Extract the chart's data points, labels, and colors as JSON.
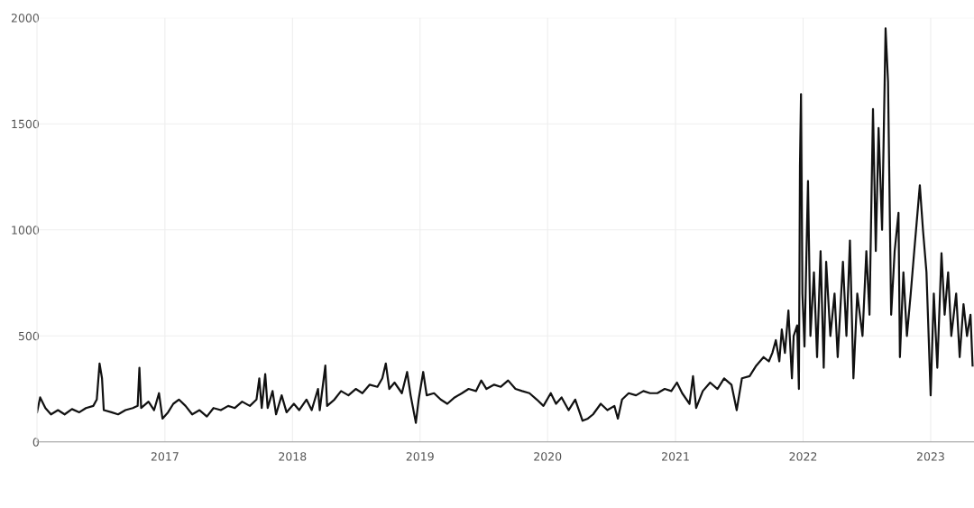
{
  "chart_data": {
    "type": "line",
    "x": [
      "2016-01-01",
      "2016-01-10",
      "2016-01-25",
      "2016-02-10",
      "2016-03-01",
      "2016-03-20",
      "2016-04-10",
      "2016-05-01",
      "2016-05-20",
      "2016-06-10",
      "2016-06-20",
      "2016-06-28",
      "2016-07-05",
      "2016-07-10",
      "2016-08-01",
      "2016-08-20",
      "2016-09-10",
      "2016-10-01",
      "2016-10-15",
      "2016-10-20",
      "2016-10-25",
      "2016-11-15",
      "2016-12-01",
      "2016-12-15",
      "2016-12-25",
      "2017-01-10",
      "2017-01-25",
      "2017-02-10",
      "2017-03-01",
      "2017-03-20",
      "2017-04-10",
      "2017-05-01",
      "2017-05-20",
      "2017-06-10",
      "2017-07-01",
      "2017-07-20",
      "2017-08-10",
      "2017-09-01",
      "2017-09-20",
      "2017-09-28",
      "2017-10-05",
      "2017-10-15",
      "2017-10-22",
      "2017-11-05",
      "2017-11-15",
      "2017-12-01",
      "2017-12-15",
      "2018-01-05",
      "2018-01-20",
      "2018-02-10",
      "2018-02-25",
      "2018-03-15",
      "2018-03-20",
      "2018-04-05",
      "2018-04-10",
      "2018-05-01",
      "2018-05-20",
      "2018-06-10",
      "2018-07-01",
      "2018-07-20",
      "2018-08-10",
      "2018-09-01",
      "2018-09-15",
      "2018-09-25",
      "2018-10-05",
      "2018-10-20",
      "2018-11-10",
      "2018-11-25",
      "2018-12-05",
      "2018-12-20",
      "2018-12-28",
      "2019-01-10",
      "2019-01-20",
      "2019-02-10",
      "2019-03-01",
      "2019-03-20",
      "2019-04-10",
      "2019-05-01",
      "2019-05-20",
      "2019-06-10",
      "2019-06-25",
      "2019-07-10",
      "2019-08-01",
      "2019-08-20",
      "2019-09-10",
      "2019-10-01",
      "2019-10-20",
      "2019-11-10",
      "2019-12-01",
      "2019-12-20",
      "2020-01-10",
      "2020-01-25",
      "2020-02-10",
      "2020-03-01",
      "2020-03-20",
      "2020-04-10",
      "2020-04-25",
      "2020-05-10",
      "2020-06-01",
      "2020-06-20",
      "2020-07-10",
      "2020-07-20",
      "2020-08-01",
      "2020-08-20",
      "2020-09-10",
      "2020-10-01",
      "2020-10-20",
      "2020-11-10",
      "2020-12-01",
      "2020-12-20",
      "2021-01-05",
      "2021-01-20",
      "2021-02-10",
      "2021-02-20",
      "2021-03-01",
      "2021-03-20",
      "2021-04-10",
      "2021-05-01",
      "2021-05-20",
      "2021-06-10",
      "2021-06-25",
      "2021-07-10",
      "2021-08-01",
      "2021-08-20",
      "2021-09-10",
      "2021-09-25",
      "2021-10-05",
      "2021-10-15",
      "2021-10-25",
      "2021-11-01",
      "2021-11-10",
      "2021-11-20",
      "2021-11-30",
      "2021-12-05",
      "2021-12-15",
      "2021-12-20",
      "2021-12-23",
      "2021-12-26",
      "2021-12-30",
      "2022-01-05",
      "2022-01-15",
      "2022-01-22",
      "2022-02-01",
      "2022-02-10",
      "2022-02-20",
      "2022-03-01",
      "2022-03-08",
      "2022-03-20",
      "2022-04-01",
      "2022-04-10",
      "2022-04-25",
      "2022-05-05",
      "2022-05-15",
      "2022-05-25",
      "2022-06-05",
      "2022-06-20",
      "2022-07-01",
      "2022-07-10",
      "2022-07-20",
      "2022-07-28",
      "2022-08-05",
      "2022-08-15",
      "2022-08-25",
      "2022-09-01",
      "2022-09-10",
      "2022-09-20",
      "2022-10-01",
      "2022-10-05",
      "2022-10-15",
      "2022-10-25",
      "2022-11-05",
      "2022-11-15",
      "2022-12-01",
      "2022-12-10",
      "2022-12-20",
      "2023-01-01",
      "2023-01-10",
      "2023-01-20",
      "2023-02-01",
      "2023-02-10",
      "2023-02-20",
      "2023-03-01",
      "2023-03-15",
      "2023-03-25",
      "2023-04-05",
      "2023-04-15",
      "2023-04-25",
      "2023-05-01"
    ],
    "series": [
      {
        "color": "#111111",
        "values": [
          140,
          210,
          160,
          130,
          150,
          130,
          155,
          140,
          160,
          170,
          200,
          370,
          300,
          150,
          140,
          130,
          150,
          160,
          170,
          350,
          160,
          190,
          150,
          230,
          110,
          140,
          180,
          200,
          170,
          130,
          150,
          120,
          160,
          150,
          170,
          160,
          190,
          170,
          200,
          300,
          160,
          320,
          160,
          240,
          130,
          220,
          140,
          180,
          150,
          200,
          150,
          250,
          150,
          360,
          170,
          200,
          240,
          220,
          250,
          230,
          270,
          260,
          300,
          370,
          250,
          280,
          230,
          330,
          220,
          90,
          200,
          330,
          220,
          230,
          200,
          180,
          210,
          230,
          250,
          240,
          290,
          250,
          270,
          260,
          290,
          250,
          240,
          230,
          200,
          170,
          230,
          180,
          210,
          150,
          200,
          100,
          110,
          130,
          180,
          150,
          170,
          110,
          200,
          230,
          220,
          240,
          230,
          230,
          250,
          240,
          280,
          230,
          180,
          310,
          160,
          240,
          280,
          250,
          300,
          270,
          150,
          300,
          310,
          360,
          400,
          380,
          420,
          480,
          380,
          530,
          420,
          620,
          300,
          500,
          550,
          250,
          1300,
          1640,
          700,
          450,
          1230,
          500,
          800,
          400,
          900,
          350,
          850,
          500,
          700,
          400,
          850,
          500,
          950,
          300,
          700,
          500,
          900,
          600,
          1570,
          900,
          1480,
          1000,
          1950,
          1700,
          600,
          900,
          1080,
          400,
          800,
          500,
          700,
          900,
          1210,
          1000,
          800,
          220,
          700,
          350,
          890,
          600,
          800,
          500,
          700,
          400,
          650,
          500,
          600,
          360
        ]
      }
    ],
    "xlim": [
      "2016-01-01",
      "2023-05-05"
    ],
    "xticks": [
      {
        "value": "2017-01-01",
        "label": "2017"
      },
      {
        "value": "2018-01-01",
        "label": "2018"
      },
      {
        "value": "2019-01-01",
        "label": "2019"
      },
      {
        "value": "2020-01-01",
        "label": "2020"
      },
      {
        "value": "2021-01-01",
        "label": "2021"
      },
      {
        "value": "2022-01-01",
        "label": "2022"
      },
      {
        "value": "2023-01-01",
        "label": "2023"
      }
    ],
    "ylim": [
      0,
      2000
    ],
    "yticks": [
      0,
      500,
      1000,
      1500,
      2000
    ],
    "grid": true
  }
}
